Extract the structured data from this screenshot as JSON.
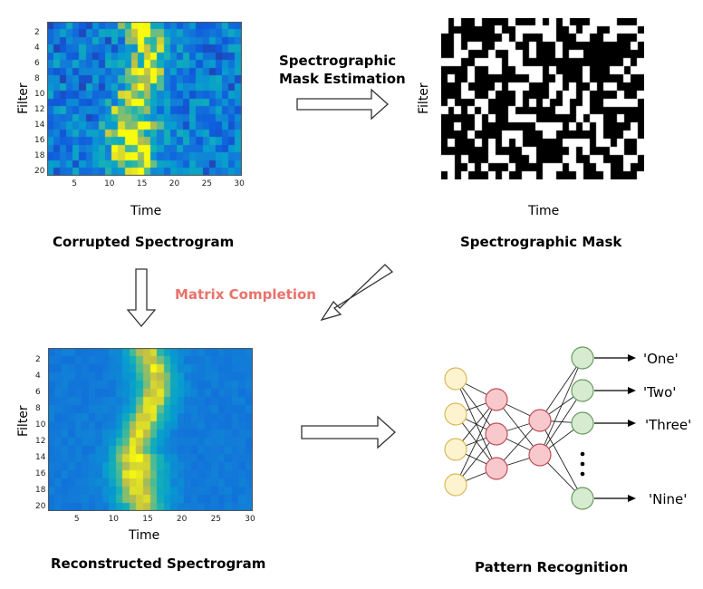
{
  "corrupted": {
    "caption": "Corrupted Spectrogram",
    "xlabel": "Time",
    "ylabel": "Filter",
    "xticks": [
      "5",
      "10",
      "15",
      "20",
      "25",
      "30"
    ],
    "yticks": [
      "2",
      "4",
      "6",
      "8",
      "10",
      "12",
      "14",
      "16",
      "18",
      "20"
    ]
  },
  "mask": {
    "caption": "Spectrographic Mask",
    "xlabel": "Time",
    "ylabel": "Filter"
  },
  "reconstructed": {
    "caption": "Reconstructed Spectrogram",
    "xlabel": "Time",
    "ylabel": "Filter",
    "xticks": [
      "5",
      "10",
      "15",
      "20",
      "25",
      "30"
    ],
    "yticks": [
      "2",
      "4",
      "6",
      "8",
      "10",
      "12",
      "14",
      "16",
      "18",
      "20"
    ]
  },
  "pattern": {
    "caption": "Pattern Recognition",
    "outputs": [
      "'One'",
      "'Two'",
      "'Three'",
      "'Nine'"
    ]
  },
  "steps": {
    "mask_estimation": [
      "Spectrographic",
      "Mask Estimation"
    ],
    "matrix_completion": "Matrix Completion"
  },
  "colors": {
    "matrix_completion": "#e8736b",
    "input_node": "#fdf4cf",
    "input_node_stroke": "#d8b85a",
    "hidden_node": "#f7c9cc",
    "hidden_node_stroke": "#c0505a",
    "output_node": "#d6ebcf",
    "output_node_stroke": "#6a9a60"
  }
}
